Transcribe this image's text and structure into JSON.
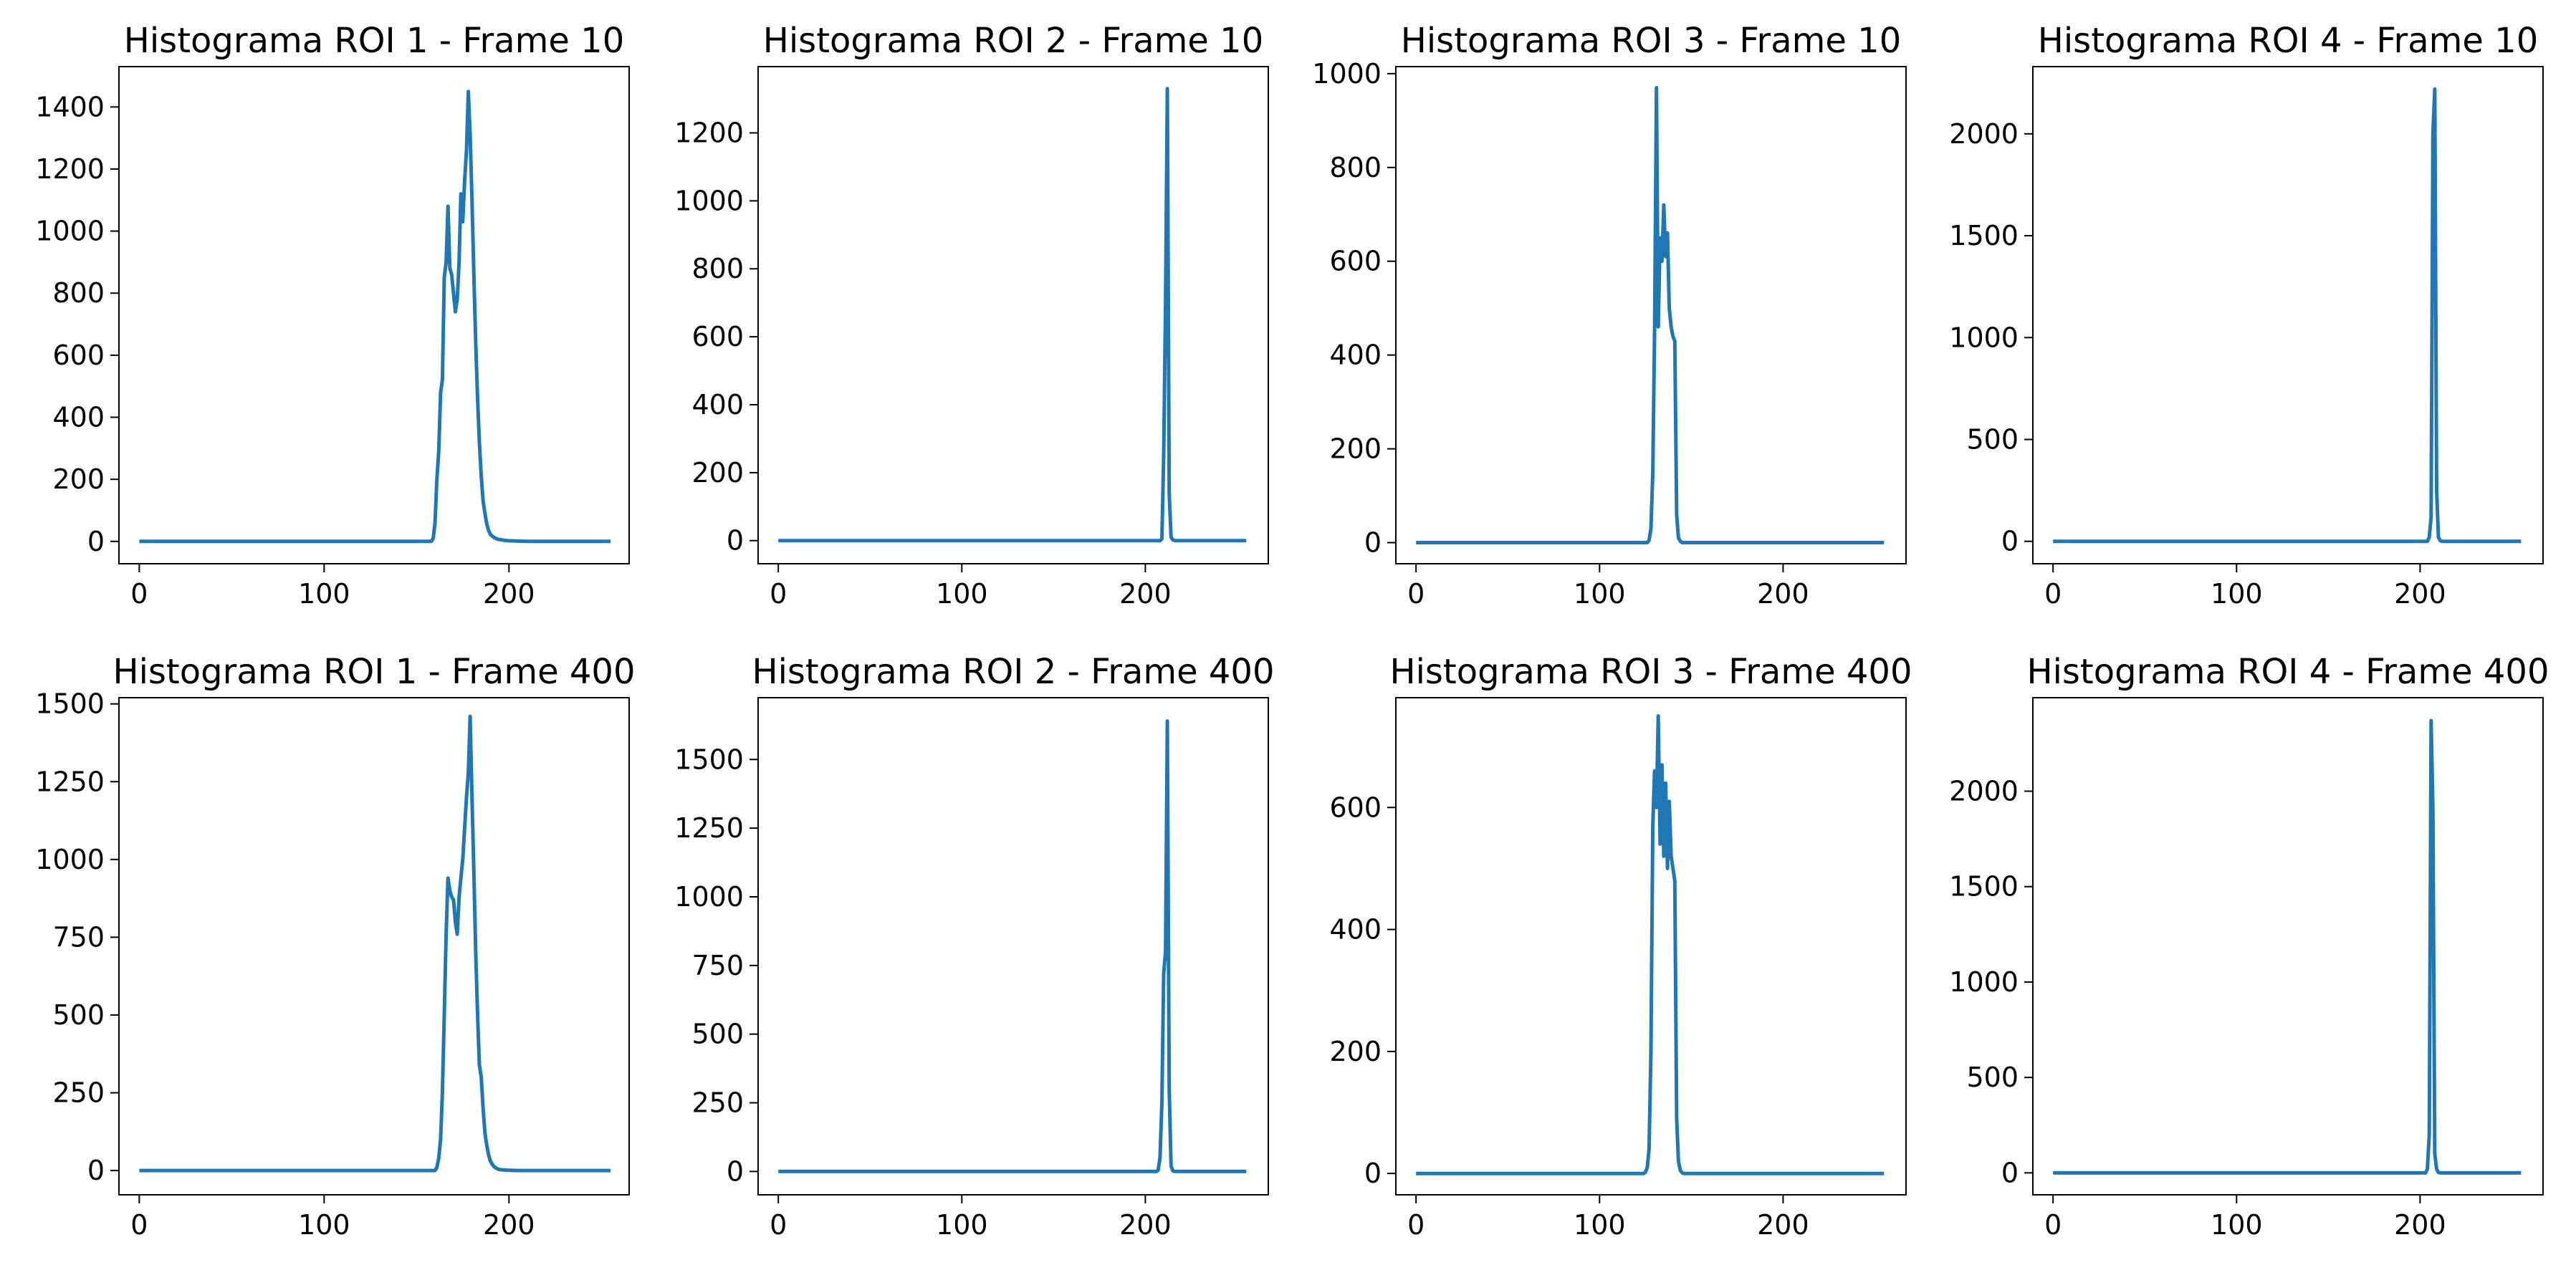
{
  "line_color": "#1f77b4",
  "chart_data": [
    {
      "type": "line",
      "title": "Histograma ROI 1 - Frame 10",
      "xlabel": "",
      "ylabel": "",
      "xlim": [
        -11,
        265
      ],
      "ylim": [
        -72,
        1530
      ],
      "xticks": [
        0,
        100,
        200
      ],
      "yticks": [
        0,
        200,
        400,
        600,
        800,
        1000,
        1200,
        1400
      ],
      "grid": false,
      "series": [
        {
          "x": [
            0,
            158,
            159,
            160,
            161,
            162,
            163,
            164,
            165,
            166,
            167,
            168,
            169,
            170,
            171,
            172,
            173,
            174,
            175,
            176,
            177,
            178,
            179,
            180,
            181,
            182,
            183,
            184,
            185,
            186,
            187,
            188,
            189,
            190,
            192,
            194,
            196,
            198,
            200,
            205,
            210,
            255
          ],
          "y": [
            0,
            0,
            10,
            60,
            200,
            290,
            480,
            520,
            850,
            900,
            1080,
            880,
            860,
            800,
            740,
            780,
            900,
            1120,
            1030,
            1160,
            1260,
            1450,
            1310,
            1100,
            860,
            640,
            460,
            320,
            210,
            130,
            90,
            55,
            35,
            22,
            12,
            7,
            5,
            3,
            2,
            1,
            0,
            0
          ]
        }
      ]
    },
    {
      "type": "line",
      "title": "Histograma ROI 2 - Frame 10",
      "xlabel": "",
      "ylabel": "",
      "xlim": [
        -11,
        267
      ],
      "ylim": [
        -68,
        1395
      ],
      "xticks": [
        0,
        100,
        200
      ],
      "yticks": [
        0,
        200,
        400,
        600,
        800,
        1000,
        1200
      ],
      "grid": false,
      "series": [
        {
          "x": [
            0,
            208,
            209,
            210,
            211,
            212,
            213,
            214,
            215,
            216,
            255
          ],
          "y": [
            0,
            0,
            5,
            250,
            700,
            1330,
            140,
            10,
            2,
            0,
            0
          ]
        }
      ]
    },
    {
      "type": "line",
      "title": "Histograma ROI 3 - Frame 10",
      "xlabel": "",
      "ylabel": "",
      "xlim": [
        -11,
        267
      ],
      "ylim": [
        -45,
        1015
      ],
      "xticks": [
        0,
        100,
        200
      ],
      "yticks": [
        0,
        200,
        400,
        600,
        800,
        1000
      ],
      "grid": false,
      "series": [
        {
          "x": [
            0,
            126,
            127,
            128,
            129,
            130,
            131,
            132,
            133,
            134,
            135,
            136,
            137,
            138,
            139,
            140,
            141,
            142,
            143,
            144,
            145,
            255
          ],
          "y": [
            0,
            0,
            5,
            30,
            150,
            450,
            970,
            460,
            650,
            600,
            720,
            610,
            660,
            500,
            460,
            440,
            430,
            60,
            10,
            3,
            0,
            0
          ]
        }
      ]
    },
    {
      "type": "line",
      "title": "Histograma ROI 4 - Frame 10",
      "xlabel": "",
      "ylabel": "",
      "xlim": [
        -11,
        267
      ],
      "ylim": [
        -110,
        2330
      ],
      "xticks": [
        0,
        100,
        200
      ],
      "yticks": [
        0,
        500,
        1000,
        1500,
        2000
      ],
      "grid": false,
      "series": [
        {
          "x": [
            0,
            204,
            205,
            206,
            207,
            208,
            209,
            210,
            211,
            212,
            255
          ],
          "y": [
            0,
            0,
            20,
            120,
            2000,
            2220,
            250,
            20,
            3,
            0,
            0
          ]
        }
      ]
    },
    {
      "type": "line",
      "title": "Histograma ROI 1 - Frame 400",
      "xlabel": "",
      "ylabel": "",
      "xlim": [
        -11,
        265
      ],
      "ylim": [
        -78,
        1520
      ],
      "xticks": [
        0,
        100,
        200
      ],
      "yticks": [
        0,
        250,
        500,
        750,
        1000,
        1250,
        1500
      ],
      "grid": false,
      "series": [
        {
          "x": [
            0,
            160,
            161,
            162,
            163,
            164,
            165,
            166,
            167,
            168,
            169,
            170,
            171,
            172,
            173,
            174,
            175,
            176,
            177,
            178,
            179,
            180,
            181,
            182,
            183,
            184,
            185,
            186,
            187,
            188,
            189,
            190,
            191,
            192,
            193,
            194,
            195,
            197,
            200,
            205,
            210,
            255
          ],
          "y": [
            0,
            0,
            10,
            40,
            100,
            250,
            500,
            760,
            940,
            900,
            880,
            870,
            800,
            760,
            880,
            940,
            1000,
            1100,
            1200,
            1280,
            1460,
            1200,
            960,
            700,
            500,
            340,
            300,
            200,
            120,
            80,
            50,
            30,
            20,
            12,
            8,
            5,
            3,
            2,
            1,
            0,
            0,
            0
          ]
        }
      ]
    },
    {
      "type": "line",
      "title": "Histograma ROI 2 - Frame 400",
      "xlabel": "",
      "ylabel": "",
      "xlim": [
        -11,
        267
      ],
      "ylim": [
        -85,
        1725
      ],
      "xticks": [
        0,
        100,
        200
      ],
      "yticks": [
        0,
        250,
        500,
        750,
        1000,
        1250,
        1500
      ],
      "grid": false,
      "series": [
        {
          "x": [
            0,
            206,
            207,
            208,
            209,
            210,
            211,
            212,
            213,
            214,
            215,
            216,
            255
          ],
          "y": [
            0,
            0,
            5,
            50,
            250,
            720,
            800,
            1640,
            300,
            20,
            2,
            0,
            0
          ]
        }
      ]
    },
    {
      "type": "line",
      "title": "Histograma ROI 3 - Frame 400",
      "xlabel": "",
      "ylabel": "",
      "xlim": [
        -11,
        267
      ],
      "ylim": [
        -35,
        780
      ],
      "xticks": [
        0,
        100,
        200
      ],
      "yticks": [
        0,
        200,
        400,
        600
      ],
      "grid": false,
      "series": [
        {
          "x": [
            0,
            124,
            125,
            126,
            127,
            128,
            129,
            130,
            131,
            132,
            133,
            134,
            135,
            136,
            137,
            138,
            139,
            140,
            141,
            142,
            143,
            144,
            145,
            146,
            255
          ],
          "y": [
            0,
            0,
            2,
            10,
            40,
            200,
            570,
            660,
            600,
            750,
            540,
            670,
            520,
            640,
            500,
            610,
            520,
            500,
            480,
            90,
            20,
            5,
            1,
            0,
            0
          ]
        }
      ]
    },
    {
      "type": "line",
      "title": "Histograma ROI 4 - Frame 400",
      "xlabel": "",
      "ylabel": "",
      "xlim": [
        -11,
        267
      ],
      "ylim": [
        -115,
        2490
      ],
      "xticks": [
        0,
        100,
        200
      ],
      "yticks": [
        0,
        500,
        1000,
        1500,
        2000
      ],
      "grid": false,
      "series": [
        {
          "x": [
            0,
            203,
            204,
            205,
            206,
            207,
            208,
            209,
            210,
            211,
            255
          ],
          "y": [
            0,
            0,
            20,
            200,
            2370,
            1900,
            100,
            20,
            2,
            0,
            0
          ]
        }
      ]
    }
  ]
}
